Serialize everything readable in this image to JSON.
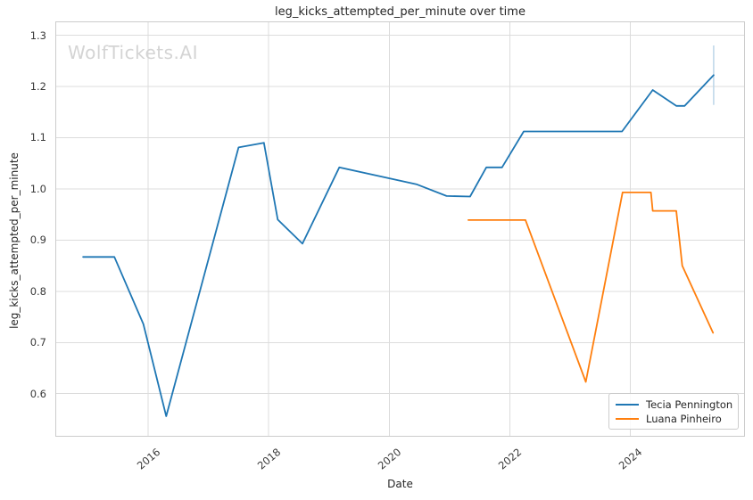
{
  "watermark": "WolfTickets.AI",
  "chart_data": {
    "type": "line",
    "title": "leg_kicks_attempted_per_minute over time",
    "xlabel": "Date",
    "ylabel": "leg_kicks_attempted_per_minute",
    "xlim": [
      2014.46,
      2025.9
    ],
    "ylim": [
      0.516,
      1.327
    ],
    "x_ticks": [
      2016,
      2018,
      2020,
      2022,
      2024
    ],
    "y_ticks": [
      0.6,
      0.7,
      0.8,
      0.9,
      1.0,
      1.1,
      1.2,
      1.3
    ],
    "grid": true,
    "legend_position": "lower right",
    "series": [
      {
        "name": "Tecia Pennington",
        "color": "#1f77b4",
        "x": [
          2014.92,
          2015.44,
          2015.92,
          2016.3,
          2017.5,
          2017.92,
          2018.15,
          2018.56,
          2019.17,
          2020.45,
          2020.95,
          2021.34,
          2021.61,
          2021.87,
          2022.23,
          2023.86,
          2024.37,
          2024.76,
          2024.9,
          2025.38
        ],
        "y": [
          0.867,
          0.867,
          0.736,
          0.556,
          1.081,
          1.09,
          0.94,
          0.893,
          1.042,
          1.009,
          0.986,
          0.985,
          1.042,
          1.042,
          1.112,
          1.112,
          1.193,
          1.162,
          1.162,
          1.222
        ]
      },
      {
        "name": "Luana Pinheiro",
        "color": "#ff7f0e",
        "x": [
          2021.31,
          2022.26,
          2023.26,
          2023.87,
          2024.34,
          2024.37,
          2024.76,
          2024.86,
          2025.37
        ],
        "y": [
          0.939,
          0.939,
          0.623,
          0.993,
          0.993,
          0.957,
          0.957,
          0.85,
          0.719
        ]
      }
    ],
    "error_bars": [
      {
        "series": "Tecia Pennington",
        "x": 2025.38,
        "y_low": 1.164,
        "y_high": 1.28,
        "color": "#bcd6e8"
      }
    ],
    "style": {
      "background": "#ffffff",
      "grid_color": "#dcdcdc",
      "spine_color": "#cccccc",
      "text_color": "#3a3a3a",
      "watermark_color": "#d4d4d4"
    }
  }
}
